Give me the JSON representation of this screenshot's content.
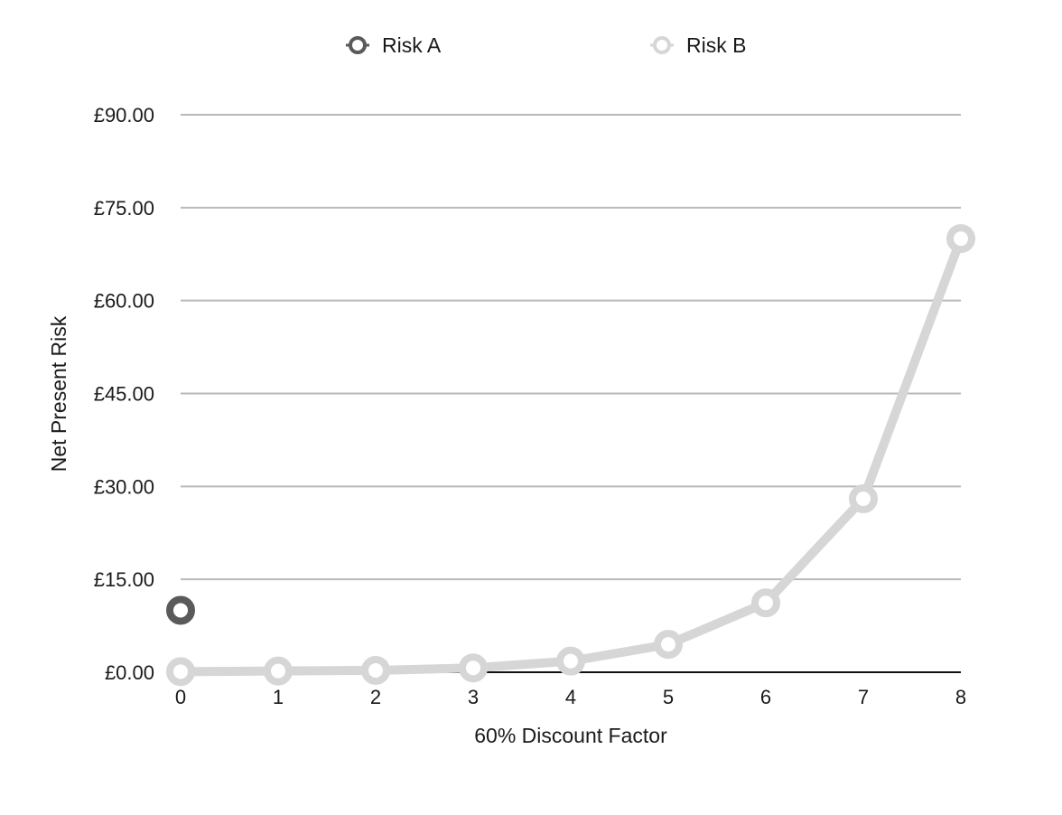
{
  "chart_data": {
    "type": "line",
    "x": [
      0,
      1,
      2,
      3,
      4,
      5,
      6,
      7,
      8
    ],
    "x_ticks": [
      "0",
      "1",
      "2",
      "3",
      "4",
      "5",
      "6",
      "7",
      "8"
    ],
    "xlim": [
      0,
      8
    ],
    "ylim": [
      0,
      90
    ],
    "y_ticks": [
      0,
      15,
      30,
      45,
      60,
      75,
      90
    ],
    "y_tick_labels": [
      "£0.00",
      "£15.00",
      "£30.00",
      "£45.00",
      "£60.00",
      "£75.00",
      "£90.00"
    ],
    "xlabel": "60% Discount Factor",
    "ylabel": "Net Present Risk",
    "grid": true,
    "legend_position": "top",
    "series": [
      {
        "name": "Risk A",
        "color": "#5a5a5a",
        "values": [
          10,
          null,
          null,
          null,
          null,
          null,
          null,
          null,
          null
        ]
      },
      {
        "name": "Risk B",
        "color": "#d6d6d6",
        "values": [
          0.1,
          0.2,
          0.3,
          0.7,
          1.8,
          4.5,
          11.2,
          28,
          70
        ]
      }
    ]
  }
}
